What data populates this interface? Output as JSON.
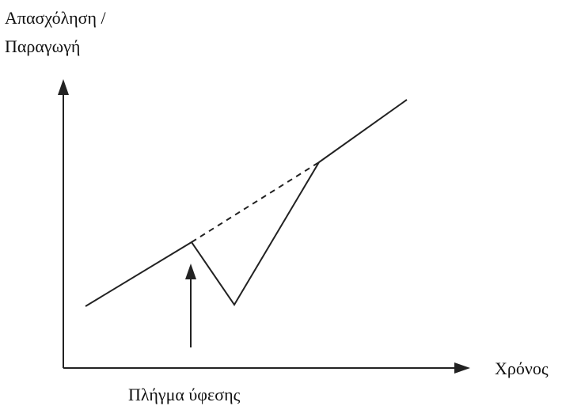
{
  "axis_labels": {
    "y": [
      "Απασχόληση /",
      "Παραγωγή"
    ],
    "x": "Χρόνος"
  },
  "annotation": "Πλήγμα ύφεσης"
}
